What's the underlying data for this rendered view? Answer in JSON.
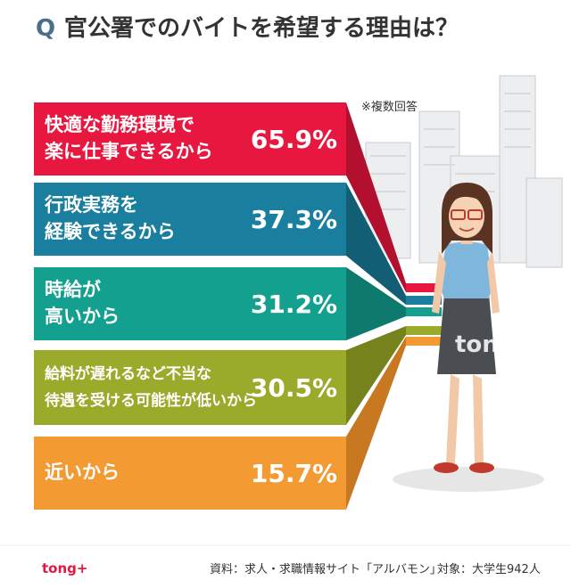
{
  "header": {
    "q": "Q",
    "title": "官公署でのバイトを希望する理由は？"
  },
  "note": "※複数回答",
  "items": [
    {
      "lines": [
        "快適な勤務環境で",
        "楽に仕事できるから"
      ],
      "percent": "65.9%"
    },
    {
      "lines": [
        "行政実務を",
        "経験できるから"
      ],
      "percent": "37.3%"
    },
    {
      "lines": [
        "時給が",
        "高いから"
      ],
      "percent": "31.2%"
    },
    {
      "lines": [
        "給料が遅れるなど不当な",
        "待遇を受ける可能性が低いから"
      ],
      "percent": "30.5%"
    },
    {
      "lines": [
        "近いから"
      ],
      "percent": "15.7%"
    }
  ],
  "watermark": "tong+",
  "footer": {
    "logo": "tong+",
    "source": "資料：求人・求職情報サイト「アルバモン」",
    "target": "対象：大学生942人"
  }
}
